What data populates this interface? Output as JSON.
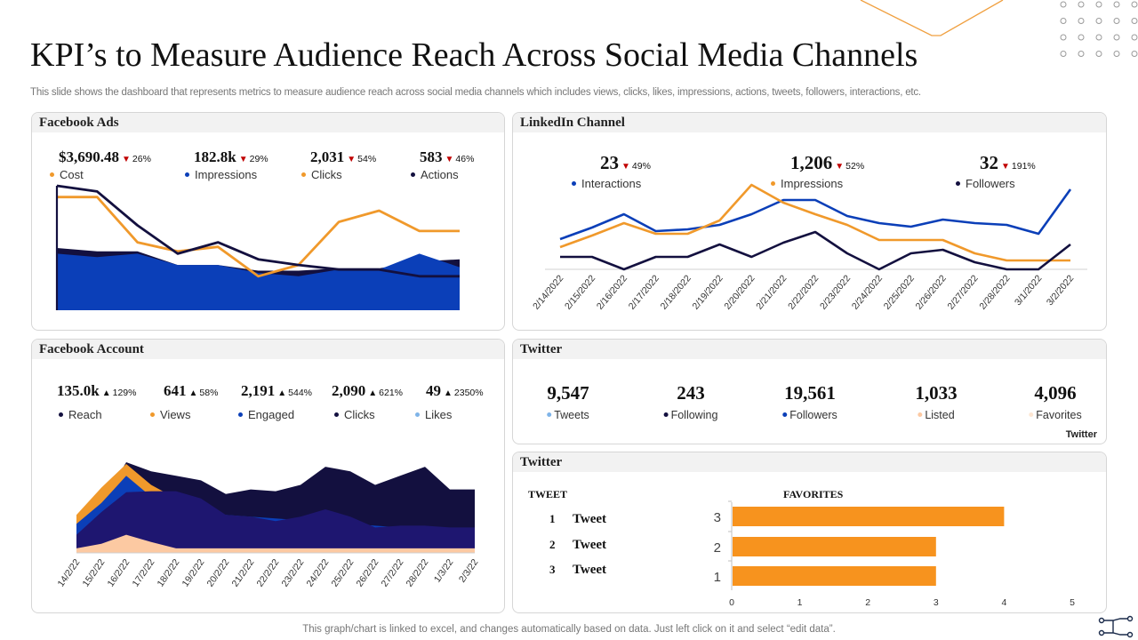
{
  "page": {
    "title": "KPI’s to Measure Audience Reach Across Social Media Channels",
    "subtitle": "This slide shows the dashboard that represents metrics to measure audience reach across social media channels which includes views, clicks, likes, impressions, actions, tweets, followers, interactions, etc.",
    "footer": "This graph/chart is linked to excel,  and changes automatically based on data. Just left click on it and select “edit data”."
  },
  "colors": {
    "navy": "#13103f",
    "blue": "#0b3fb8",
    "orange": "#f0992b",
    "light_orange": "#fcc9a2",
    "light_blue": "#7fb4e8",
    "down_red": "#c00000"
  },
  "facebook_ads": {
    "title": "Facebook Ads",
    "kpis": [
      {
        "value": "$3,690.48",
        "dir": "down",
        "change": "26%",
        "label": "Cost",
        "color": "#f0992b"
      },
      {
        "value": "182.8k",
        "dir": "down",
        "change": "29%",
        "label": "Impressions",
        "color": "#0b3fb8"
      },
      {
        "value": "2,031",
        "dir": "down",
        "change": "54%",
        "label": "Clicks",
        "color": "#f0992b"
      },
      {
        "value": "583",
        "dir": "down",
        "change": "46%",
        "label": "Actions",
        "color": "#13103f"
      }
    ]
  },
  "linkedin": {
    "title": "LinkedIn  Channel",
    "kpis": [
      {
        "value": "23",
        "dir": "down",
        "change": "49%",
        "label": "Interactions",
        "color": "#0b3fb8"
      },
      {
        "value": "1,206",
        "dir": "down",
        "change": "52%",
        "label": "Impressions",
        "color": "#f0992b"
      },
      {
        "value": "32",
        "dir": "down",
        "change": "191%",
        "label": "Followers",
        "color": "#13103f"
      }
    ]
  },
  "facebook_account": {
    "title": "Facebook Account",
    "kpis": [
      {
        "value": "135.0k",
        "dir": "up",
        "change": "129%",
        "label": "Reach",
        "color": "#13103f"
      },
      {
        "value": "641",
        "dir": "up",
        "change": "58%",
        "label": "Views",
        "color": "#f0992b"
      },
      {
        "value": "2,191",
        "dir": "up",
        "change": "544%",
        "label": "Engaged",
        "color": "#0b3fb8"
      },
      {
        "value": "2,090",
        "dir": "up",
        "change": "621%",
        "label": "Clicks",
        "color": "#13103f"
      },
      {
        "value": "49",
        "dir": "up",
        "change": "2350%",
        "label": "Likes",
        "color": "#7fb4e8"
      }
    ]
  },
  "twitter_stats": {
    "title": "Twitter",
    "tag": "Twitter",
    "items": [
      {
        "value": "9,547",
        "label": "Tweets",
        "color": "#7fb4e8"
      },
      {
        "value": "243",
        "label": "Following",
        "color": "#13103f"
      },
      {
        "value": "19,561",
        "label": "Followers",
        "color": "#0b3fb8"
      },
      {
        "value": "1,033",
        "label": "Listed",
        "color": "#fcc9a2"
      },
      {
        "value": "4,096",
        "label": "Favorites",
        "color": "#fde6d2"
      }
    ]
  },
  "twitter_tweets": {
    "title": "Twitter",
    "col_tweet": "TWEET",
    "col_favorites": "FAVORITES",
    "rows": [
      {
        "num": "1",
        "label": "Tweet"
      },
      {
        "num": "2",
        "label": "Tweet"
      },
      {
        "num": "3",
        "label": "Tweet"
      }
    ]
  },
  "chart_data": [
    {
      "id": "facebook_ads_chart",
      "type": "area",
      "title": "Facebook Ads",
      "x": [
        1,
        2,
        3,
        4,
        5,
        6,
        7,
        8,
        9,
        10,
        11
      ],
      "ylim": [
        0,
        110
      ],
      "series": [
        {
          "name": "Actions (area)",
          "kind": "area",
          "color": "#13103f",
          "values": [
            55,
            52,
            52,
            40,
            40,
            35,
            35,
            37,
            37,
            43,
            45
          ]
        },
        {
          "name": "Impressions",
          "kind": "area",
          "color": "#0b3fb8",
          "values": [
            50,
            47,
            50,
            40,
            40,
            33,
            30,
            36,
            36,
            50,
            38
          ]
        },
        {
          "name": "Cost",
          "kind": "line",
          "color": "#f0992b",
          "values": [
            100,
            100,
            60,
            52,
            56,
            30,
            40,
            78,
            88,
            70,
            70
          ]
        },
        {
          "name": "Actions",
          "kind": "line",
          "color": "#13103f",
          "values": [
            110,
            105,
            75,
            50,
            60,
            45,
            40,
            36,
            36,
            30,
            30
          ]
        }
      ]
    },
    {
      "id": "linkedin_chart",
      "type": "line",
      "title": "LinkedIn Channel",
      "categories": [
        "2/14/2022",
        "2/15/2022",
        "2/16/2022",
        "2/17/2022",
        "2/18/2022",
        "2/19/2022",
        "2/20/2022",
        "2/21/2022",
        "2/22/2022",
        "2/23/2022",
        "2/24/2022",
        "2/25/2022",
        "2/26/2022",
        "2/27/2022",
        "2/28/2022",
        "3/1/2022",
        "3/2/2022"
      ],
      "ylim": [
        0,
        100
      ],
      "series": [
        {
          "name": "Interactions",
          "color": "#0b3fb8",
          "values": [
            34,
            47,
            62,
            43,
            45,
            50,
            62,
            78,
            78,
            60,
            52,
            48,
            56,
            52,
            50,
            40,
            90
          ]
        },
        {
          "name": "Impressions",
          "color": "#f0992b",
          "values": [
            25,
            38,
            52,
            40,
            40,
            55,
            95,
            75,
            62,
            50,
            33,
            33,
            33,
            18,
            10,
            10,
            10
          ]
        },
        {
          "name": "Followers",
          "color": "#13103f",
          "values": [
            14,
            14,
            0,
            14,
            14,
            28,
            14,
            30,
            42,
            18,
            0,
            18,
            22,
            8,
            0,
            0,
            28
          ]
        }
      ]
    },
    {
      "id": "facebook_account_chart",
      "type": "area",
      "title": "Facebook Account",
      "categories": [
        "14/2/22",
        "15/2/22",
        "16/2/22",
        "17/2/22",
        "18/2/22",
        "19/2/22",
        "20/2/22",
        "21/2/22",
        "22/2/22",
        "23/2/22",
        "24/2/22",
        "25/2/22",
        "26/2/22",
        "27/2/22",
        "28/2/22",
        "1/3/22",
        "2/3/22"
      ],
      "ylim": [
        0,
        100
      ],
      "series": [
        {
          "name": "Reach",
          "color": "#13103f",
          "values": [
            25,
            55,
            100,
            90,
            85,
            80,
            65,
            70,
            68,
            75,
            95,
            90,
            75,
            85,
            95,
            70,
            70
          ]
        },
        {
          "name": "Views",
          "color": "#f0992b",
          "values": [
            42,
            72,
            98,
            75,
            60,
            48,
            40,
            35,
            32,
            30,
            28,
            26,
            24,
            22,
            20,
            18,
            16
          ]
        },
        {
          "name": "Engaged",
          "color": "#0b3fb8",
          "values": [
            32,
            55,
            85,
            62,
            58,
            45,
            42,
            40,
            38,
            36,
            34,
            32,
            30,
            28,
            26,
            24,
            22
          ]
        },
        {
          "name": "Clicks",
          "color": "#1e1670",
          "values": [
            20,
            45,
            67,
            68,
            68,
            60,
            42,
            40,
            35,
            40,
            48,
            40,
            28,
            30,
            30,
            28,
            28
          ]
        },
        {
          "name": "Likes",
          "color": "#fcc9a2",
          "values": [
            5,
            10,
            20,
            12,
            5,
            5,
            5,
            5,
            5,
            5,
            5,
            5,
            5,
            5,
            5,
            5,
            5
          ]
        }
      ]
    },
    {
      "id": "twitter_favorites_chart",
      "type": "bar",
      "orientation": "horizontal",
      "title": "FAVORITES",
      "categories": [
        "3",
        "2",
        "1"
      ],
      "values": [
        4,
        3,
        3
      ],
      "xlim": [
        0,
        5
      ],
      "xticks": [
        "0",
        "1",
        "2",
        "3",
        "4",
        "5"
      ],
      "color": "#f7931e"
    }
  ]
}
